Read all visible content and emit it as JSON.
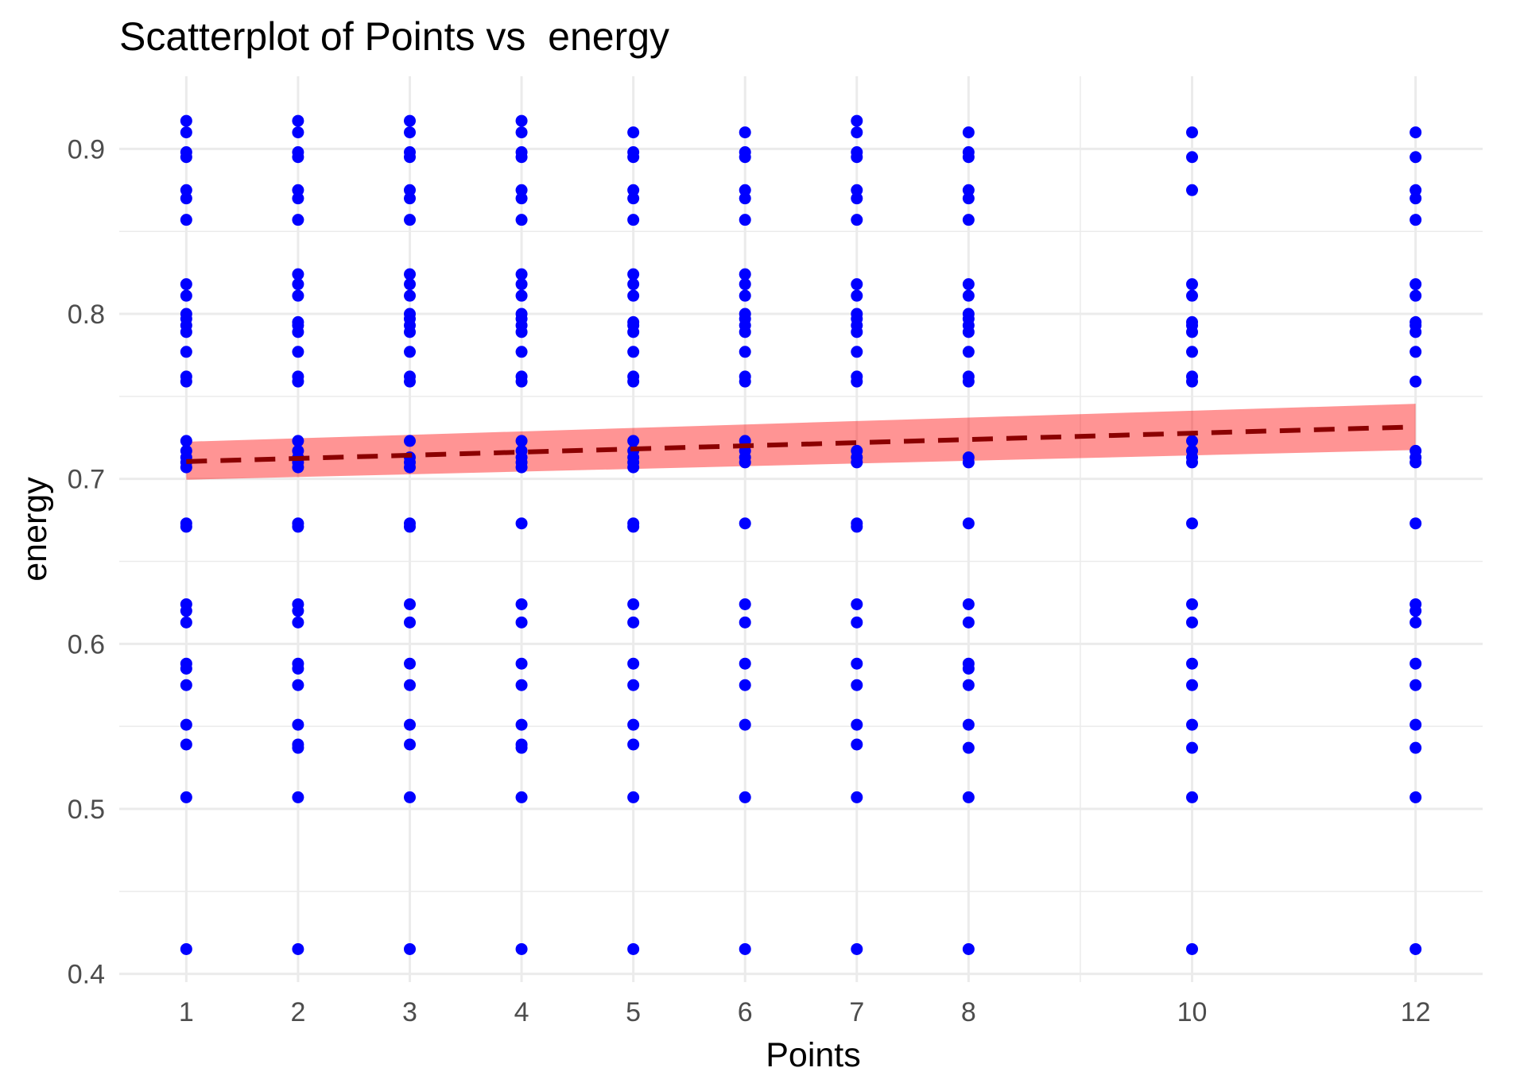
{
  "chart_data": {
    "type": "scatter",
    "title": "Scatterplot of Points vs  energy",
    "xlabel": "Points",
    "ylabel": "energy",
    "xlim": [
      0.4,
      12.6
    ],
    "ylim": [
      0.395,
      0.944
    ],
    "x_ticks": [
      1,
      2,
      3,
      4,
      5,
      6,
      7,
      8,
      10,
      12
    ],
    "x_tick_labels": [
      "1",
      "2",
      "3",
      "4",
      "5",
      "6",
      "7",
      "8",
      "10",
      "12"
    ],
    "x_minor_gridlines": [
      9
    ],
    "y_ticks": [
      0.4,
      0.5,
      0.6,
      0.7,
      0.8,
      0.9
    ],
    "y_tick_labels": [
      "0.4",
      "0.5",
      "0.6",
      "0.7",
      "0.8",
      "0.9"
    ],
    "y_minor_gridlines": [
      0.45,
      0.55,
      0.65,
      0.75,
      0.85
    ],
    "grid": true,
    "legend": "none",
    "point_color": "#0000ff",
    "trend_line": {
      "type": "linear",
      "style": "dashed",
      "color": "#8b0000",
      "x": [
        1,
        12
      ],
      "y": [
        0.7105,
        0.7315
      ]
    },
    "confidence_band": {
      "color": "#ff0000",
      "opacity": 0.42,
      "x": [
        1,
        12
      ],
      "lower": [
        0.6995,
        0.7175
      ],
      "upper": [
        0.7225,
        0.7455
      ]
    },
    "series": [
      {
        "x": 1,
        "y": [
          0.917,
          0.91,
          0.898,
          0.895,
          0.875,
          0.87,
          0.857,
          0.818,
          0.811,
          0.8,
          0.797,
          0.793,
          0.789,
          0.777,
          0.762,
          0.759,
          0.723,
          0.717,
          0.713,
          0.71,
          0.707,
          0.673,
          0.671,
          0.624,
          0.62,
          0.613,
          0.588,
          0.585,
          0.575,
          0.551,
          0.539,
          0.507,
          0.415
        ]
      },
      {
        "x": 2,
        "y": [
          0.917,
          0.91,
          0.898,
          0.895,
          0.875,
          0.87,
          0.857,
          0.824,
          0.818,
          0.811,
          0.795,
          0.793,
          0.789,
          0.777,
          0.762,
          0.759,
          0.723,
          0.717,
          0.713,
          0.71,
          0.707,
          0.673,
          0.671,
          0.624,
          0.62,
          0.613,
          0.588,
          0.585,
          0.575,
          0.551,
          0.539,
          0.537,
          0.507,
          0.415
        ]
      },
      {
        "x": 3,
        "y": [
          0.917,
          0.91,
          0.898,
          0.895,
          0.875,
          0.87,
          0.857,
          0.824,
          0.818,
          0.811,
          0.8,
          0.797,
          0.793,
          0.789,
          0.777,
          0.762,
          0.759,
          0.723,
          0.713,
          0.71,
          0.707,
          0.673,
          0.671,
          0.624,
          0.613,
          0.588,
          0.575,
          0.551,
          0.539,
          0.507,
          0.415
        ]
      },
      {
        "x": 4,
        "y": [
          0.917,
          0.91,
          0.898,
          0.895,
          0.875,
          0.87,
          0.857,
          0.824,
          0.818,
          0.811,
          0.8,
          0.797,
          0.793,
          0.789,
          0.777,
          0.762,
          0.759,
          0.723,
          0.717,
          0.713,
          0.71,
          0.707,
          0.673,
          0.624,
          0.613,
          0.588,
          0.575,
          0.551,
          0.539,
          0.537,
          0.507,
          0.415
        ]
      },
      {
        "x": 5,
        "y": [
          0.91,
          0.898,
          0.895,
          0.875,
          0.87,
          0.857,
          0.824,
          0.818,
          0.811,
          0.795,
          0.793,
          0.789,
          0.777,
          0.762,
          0.759,
          0.723,
          0.717,
          0.713,
          0.71,
          0.707,
          0.673,
          0.671,
          0.624,
          0.613,
          0.588,
          0.575,
          0.551,
          0.539,
          0.507,
          0.415
        ]
      },
      {
        "x": 6,
        "y": [
          0.91,
          0.898,
          0.895,
          0.875,
          0.87,
          0.857,
          0.824,
          0.818,
          0.811,
          0.8,
          0.797,
          0.793,
          0.789,
          0.777,
          0.762,
          0.759,
          0.723,
          0.717,
          0.713,
          0.71,
          0.673,
          0.624,
          0.613,
          0.588,
          0.575,
          0.551,
          0.507,
          0.415
        ]
      },
      {
        "x": 7,
        "y": [
          0.917,
          0.91,
          0.898,
          0.895,
          0.875,
          0.87,
          0.857,
          0.818,
          0.811,
          0.8,
          0.797,
          0.793,
          0.789,
          0.777,
          0.762,
          0.759,
          0.717,
          0.713,
          0.71,
          0.673,
          0.671,
          0.624,
          0.613,
          0.588,
          0.575,
          0.551,
          0.539,
          0.507,
          0.415
        ]
      },
      {
        "x": 8,
        "y": [
          0.91,
          0.898,
          0.895,
          0.875,
          0.87,
          0.857,
          0.818,
          0.811,
          0.8,
          0.797,
          0.793,
          0.789,
          0.777,
          0.762,
          0.759,
          0.713,
          0.71,
          0.673,
          0.624,
          0.613,
          0.588,
          0.585,
          0.575,
          0.551,
          0.537,
          0.507,
          0.415
        ]
      },
      {
        "x": 10,
        "y": [
          0.91,
          0.895,
          0.875,
          0.818,
          0.811,
          0.795,
          0.793,
          0.789,
          0.777,
          0.762,
          0.759,
          0.723,
          0.717,
          0.713,
          0.71,
          0.673,
          0.624,
          0.613,
          0.588,
          0.575,
          0.551,
          0.537,
          0.507,
          0.415
        ]
      },
      {
        "x": 12,
        "y": [
          0.91,
          0.895,
          0.875,
          0.87,
          0.857,
          0.818,
          0.811,
          0.795,
          0.793,
          0.789,
          0.777,
          0.759,
          0.717,
          0.713,
          0.71,
          0.673,
          0.624,
          0.62,
          0.613,
          0.588,
          0.575,
          0.551,
          0.537,
          0.507,
          0.415
        ]
      }
    ]
  }
}
